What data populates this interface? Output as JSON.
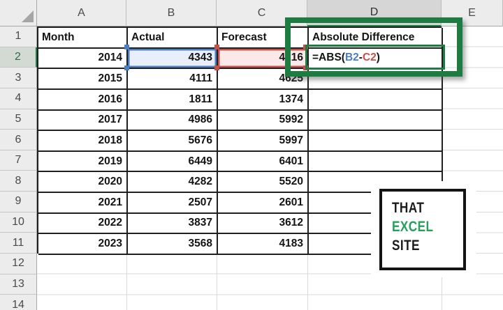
{
  "grid": {
    "column_headers": [
      "A",
      "B",
      "C",
      "D",
      "E"
    ],
    "row_numbers": [
      "1",
      "2",
      "3",
      "4",
      "5",
      "6",
      "7",
      "8",
      "9",
      "10",
      "11",
      "12",
      "13",
      "14"
    ]
  },
  "selection": {
    "selected_column": "D",
    "selected_row": "2",
    "active_cell": "D2"
  },
  "table": {
    "col_headers": [
      "Month",
      "Actual",
      "Forecast",
      "Absolute Difference"
    ],
    "rows": [
      {
        "month": "2014",
        "actual": "4343",
        "forecast": "4216"
      },
      {
        "month": "2015",
        "actual": "4111",
        "forecast": "4625"
      },
      {
        "month": "2016",
        "actual": "1811",
        "forecast": "1374"
      },
      {
        "month": "2017",
        "actual": "4986",
        "forecast": "5992"
      },
      {
        "month": "2018",
        "actual": "5676",
        "forecast": "5997"
      },
      {
        "month": "2019",
        "actual": "6449",
        "forecast": "6401"
      },
      {
        "month": "2020",
        "actual": "4282",
        "forecast": "5520"
      },
      {
        "month": "2021",
        "actual": "2507",
        "forecast": "2601"
      },
      {
        "month": "2022",
        "actual": "3837",
        "forecast": "3612"
      },
      {
        "month": "2023",
        "actual": "3568",
        "forecast": "4183"
      }
    ],
    "formula": {
      "prefix": "=ABS(",
      "ref1": "B2",
      "operator": "-",
      "ref2": "C2",
      "suffix": ")"
    }
  },
  "logo": {
    "line1": "THAT",
    "line2": "EXCEL",
    "line3": "SITE"
  },
  "colors": {
    "excel_green": "#1E7B41",
    "ref_blue": "#4D7EC0",
    "ref_red": "#C4504B",
    "logo_green": "#27A05C",
    "table_border": "#1F1F1F"
  }
}
